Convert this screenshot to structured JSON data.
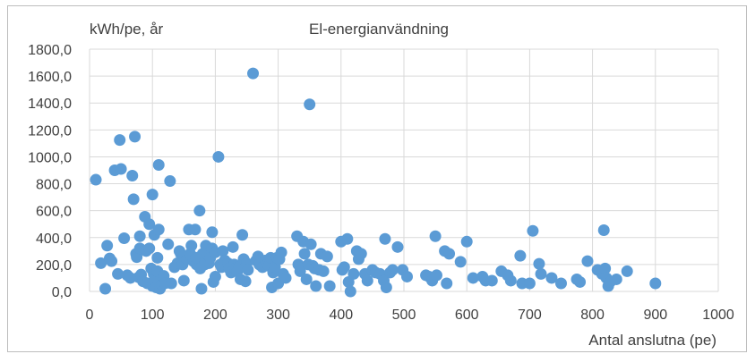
{
  "chart_data": {
    "type": "scatter",
    "title": "El-energianvändning",
    "ylabel": "kWh/pe, år",
    "xlabel": "Antal anslutna (pe)",
    "xlim": [
      0,
      1000
    ],
    "ylim": [
      0,
      1800
    ],
    "x_ticks": [
      {
        "value": 0,
        "label": "0"
      },
      {
        "value": 100,
        "label": "100"
      },
      {
        "value": 200,
        "label": "200"
      },
      {
        "value": 300,
        "label": "300"
      },
      {
        "value": 400,
        "label": "400"
      },
      {
        "value": 500,
        "label": "500"
      },
      {
        "value": 600,
        "label": "600"
      },
      {
        "value": 700,
        "label": "700"
      },
      {
        "value": 800,
        "label": "800"
      },
      {
        "value": 900,
        "label": "900"
      },
      {
        "value": 1000,
        "label": "1000"
      }
    ],
    "y_ticks": [
      {
        "value": 0,
        "label": "0,0"
      },
      {
        "value": 200,
        "label": "200,0"
      },
      {
        "value": 400,
        "label": "400,0"
      },
      {
        "value": 600,
        "label": "600,0"
      },
      {
        "value": 800,
        "label": "800,0"
      },
      {
        "value": 1000,
        "label": "1000,0"
      },
      {
        "value": 1200,
        "label": "1200,0"
      },
      {
        "value": 1400,
        "label": "1400,0"
      },
      {
        "value": 1600,
        "label": "1600,0"
      },
      {
        "value": 1800,
        "label": "1800,0"
      }
    ],
    "grid": {
      "horizontal": true,
      "vertical": true
    },
    "marker_color": "#5b9bd5",
    "points": [
      [
        10,
        830
      ],
      [
        18,
        210
      ],
      [
        25,
        20
      ],
      [
        28,
        340
      ],
      [
        32,
        245
      ],
      [
        35,
        225
      ],
      [
        40,
        900
      ],
      [
        45,
        130
      ],
      [
        48,
        1125
      ],
      [
        50,
        910
      ],
      [
        55,
        395
      ],
      [
        60,
        120
      ],
      [
        65,
        100
      ],
      [
        68,
        860
      ],
      [
        70,
        685
      ],
      [
        72,
        1150
      ],
      [
        74,
        280
      ],
      [
        75,
        255
      ],
      [
        78,
        105
      ],
      [
        80,
        410
      ],
      [
        80,
        320
      ],
      [
        82,
        125
      ],
      [
        85,
        75
      ],
      [
        88,
        555
      ],
      [
        90,
        300
      ],
      [
        92,
        60
      ],
      [
        95,
        500
      ],
      [
        95,
        320
      ],
      [
        98,
        170
      ],
      [
        100,
        720
      ],
      [
        100,
        40
      ],
      [
        102,
        130
      ],
      [
        103,
        420
      ],
      [
        104,
        90
      ],
      [
        106,
        30
      ],
      [
        108,
        250
      ],
      [
        108,
        150
      ],
      [
        110,
        940
      ],
      [
        110,
        460
      ],
      [
        112,
        20
      ],
      [
        115,
        50
      ],
      [
        118,
        115
      ],
      [
        120,
        60
      ],
      [
        125,
        350
      ],
      [
        128,
        820
      ],
      [
        130,
        60
      ],
      [
        135,
        180
      ],
      [
        140,
        210
      ],
      [
        143,
        300
      ],
      [
        145,
        280
      ],
      [
        148,
        200
      ],
      [
        150,
        80
      ],
      [
        150,
        260
      ],
      [
        155,
        240
      ],
      [
        158,
        460
      ],
      [
        160,
        280
      ],
      [
        162,
        340
      ],
      [
        165,
        225
      ],
      [
        168,
        460
      ],
      [
        170,
        200
      ],
      [
        170,
        250
      ],
      [
        175,
        600
      ],
      [
        176,
        170
      ],
      [
        178,
        20
      ],
      [
        180,
        280
      ],
      [
        183,
        200
      ],
      [
        185,
        340
      ],
      [
        187,
        280
      ],
      [
        190,
        210
      ],
      [
        192,
        250
      ],
      [
        195,
        440
      ],
      [
        195,
        320
      ],
      [
        197,
        70
      ],
      [
        200,
        110
      ],
      [
        200,
        290
      ],
      [
        205,
        1000
      ],
      [
        208,
        200
      ],
      [
        210,
        180
      ],
      [
        212,
        300
      ],
      [
        215,
        230
      ],
      [
        220,
        210
      ],
      [
        222,
        170
      ],
      [
        225,
        140
      ],
      [
        228,
        330
      ],
      [
        230,
        200
      ],
      [
        232,
        170
      ],
      [
        235,
        150
      ],
      [
        238,
        180
      ],
      [
        240,
        90
      ],
      [
        243,
        420
      ],
      [
        245,
        240
      ],
      [
        248,
        75
      ],
      [
        250,
        210
      ],
      [
        252,
        160
      ],
      [
        260,
        1620
      ],
      [
        265,
        230
      ],
      [
        268,
        260
      ],
      [
        270,
        200
      ],
      [
        275,
        180
      ],
      [
        280,
        230
      ],
      [
        283,
        200
      ],
      [
        285,
        190
      ],
      [
        288,
        250
      ],
      [
        290,
        30
      ],
      [
        292,
        140
      ],
      [
        295,
        180
      ],
      [
        298,
        250
      ],
      [
        300,
        60
      ],
      [
        302,
        240
      ],
      [
        305,
        290
      ],
      [
        308,
        130
      ],
      [
        312,
        100
      ],
      [
        330,
        410
      ],
      [
        332,
        200
      ],
      [
        335,
        150
      ],
      [
        340,
        370
      ],
      [
        342,
        280
      ],
      [
        345,
        90
      ],
      [
        348,
        200
      ],
      [
        350,
        1390
      ],
      [
        352,
        350
      ],
      [
        355,
        190
      ],
      [
        358,
        170
      ],
      [
        360,
        40
      ],
      [
        365,
        160
      ],
      [
        368,
        280
      ],
      [
        372,
        150
      ],
      [
        378,
        260
      ],
      [
        382,
        40
      ],
      [
        400,
        370
      ],
      [
        402,
        160
      ],
      [
        405,
        180
      ],
      [
        410,
        390
      ],
      [
        412,
        70
      ],
      [
        415,
        0
      ],
      [
        420,
        130
      ],
      [
        425,
        300
      ],
      [
        428,
        240
      ],
      [
        432,
        280
      ],
      [
        438,
        130
      ],
      [
        442,
        80
      ],
      [
        450,
        160
      ],
      [
        455,
        140
      ],
      [
        462,
        130
      ],
      [
        468,
        80
      ],
      [
        470,
        390
      ],
      [
        472,
        30
      ],
      [
        478,
        140
      ],
      [
        482,
        160
      ],
      [
        490,
        330
      ],
      [
        498,
        160
      ],
      [
        505,
        110
      ],
      [
        535,
        120
      ],
      [
        540,
        110
      ],
      [
        545,
        80
      ],
      [
        550,
        410
      ],
      [
        552,
        120
      ],
      [
        565,
        300
      ],
      [
        568,
        60
      ],
      [
        572,
        280
      ],
      [
        590,
        220
      ],
      [
        600,
        370
      ],
      [
        610,
        100
      ],
      [
        625,
        110
      ],
      [
        630,
        80
      ],
      [
        640,
        80
      ],
      [
        655,
        150
      ],
      [
        665,
        120
      ],
      [
        670,
        80
      ],
      [
        685,
        265
      ],
      [
        688,
        60
      ],
      [
        700,
        60
      ],
      [
        705,
        450
      ],
      [
        715,
        205
      ],
      [
        718,
        130
      ],
      [
        735,
        100
      ],
      [
        750,
        60
      ],
      [
        775,
        90
      ],
      [
        780,
        70
      ],
      [
        792,
        225
      ],
      [
        808,
        160
      ],
      [
        815,
        130
      ],
      [
        818,
        455
      ],
      [
        820,
        170
      ],
      [
        822,
        100
      ],
      [
        825,
        40
      ],
      [
        828,
        70
      ],
      [
        838,
        90
      ],
      [
        855,
        150
      ],
      [
        900,
        60
      ]
    ]
  }
}
